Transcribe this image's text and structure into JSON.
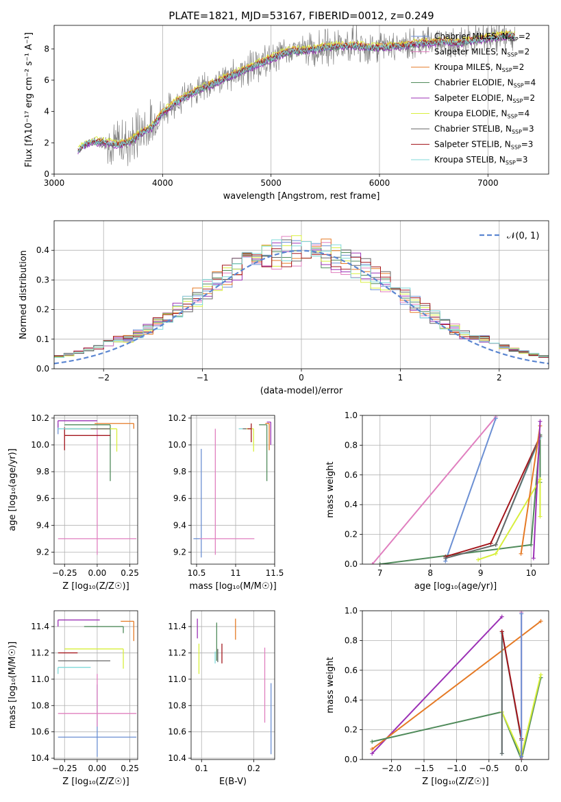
{
  "chart_data": [
    {
      "id": "spectrum",
      "type": "line",
      "title": "PLATE=1821, MJD=53167, FIBERID=0012, z=0.249",
      "xlabel": "wavelength [Angstrom, rest frame]",
      "ylabel": "Flux [fλ10⁻¹⁷ erg cm⁻² s⁻¹ A⁻¹]",
      "xlim": [
        3000,
        7560
      ],
      "ylim": [
        0,
        9.5
      ],
      "xticks": [
        3000,
        4000,
        5000,
        6000,
        7000
      ],
      "yticks": [
        0,
        2,
        4,
        6,
        8
      ],
      "grid": "x",
      "legend_position": "top-right",
      "data_curve": {
        "name": "data",
        "color": "#808080",
        "x": [
          3220,
          3300,
          3400,
          3500,
          3600,
          3700,
          3800,
          3900,
          4000,
          4100,
          4200,
          4300,
          4400,
          4500,
          4600,
          4700,
          4800,
          4900,
          5000,
          5100,
          5200,
          5300,
          5400,
          5500,
          5600,
          5700,
          5800,
          5900,
          6000,
          6100,
          6200,
          6300,
          6400,
          6500,
          6600,
          6700,
          6800,
          6900,
          7000,
          7100,
          7200,
          7250
        ],
        "y": [
          1.5,
          2.0,
          2.1,
          2.0,
          1.9,
          2.1,
          2.6,
          3.0,
          3.9,
          4.5,
          4.9,
          5.3,
          5.6,
          5.9,
          6.2,
          6.5,
          6.8,
          7.1,
          7.4,
          7.7,
          7.9,
          7.9,
          8.0,
          8.1,
          8.2,
          8.2,
          8.2,
          8.1,
          8.1,
          8.2,
          8.2,
          8.3,
          8.4,
          8.4,
          8.5,
          8.4,
          8.5,
          8.6,
          8.7,
          8.8,
          8.9,
          8.8
        ],
        "noise": [
          0.2,
          0.3,
          0.3,
          1.4,
          1.6,
          1.8,
          1.9,
          2.0,
          1.0,
          1.0,
          1.0,
          1.0,
          1.0,
          1.0,
          1.0,
          1.2,
          1.2,
          1.2,
          1.0,
          1.0,
          1.0,
          1.0,
          1.2,
          1.2,
          1.4,
          1.4,
          1.4,
          1.2,
          1.0,
          1.0,
          1.0,
          1.2,
          1.2,
          1.0,
          1.0,
          1.0,
          1.0,
          1.0,
          1.0,
          1.0,
          1.0,
          1.0
        ]
      },
      "series": [
        {
          "name": "Chabrier MILES, N",
          "sub": "SSP",
          "suffix": "=2",
          "color": "#6b8fd3",
          "offset": -0.05
        },
        {
          "name": "Salpeter MILES, N",
          "sub": "SSP",
          "suffix": "=2",
          "color": "#e07fbf",
          "offset": 0.05
        },
        {
          "name": "Kroupa MILES, N",
          "sub": "SSP",
          "suffix": "=2",
          "color": "#e57a25",
          "offset": 0.1
        },
        {
          "name": "Chabrier ELODIE, N",
          "sub": "SSP",
          "suffix": "=4",
          "color": "#4f8a5a",
          "offset": -0.1
        },
        {
          "name": "Salpeter ELODIE, N",
          "sub": "SSP",
          "suffix": "=2",
          "color": "#9b30b5",
          "offset": -0.15
        },
        {
          "name": "Kroupa ELODIE, N",
          "sub": "SSP",
          "suffix": "=4",
          "color": "#d8ef3c",
          "offset": 0.15
        },
        {
          "name": "Chabrier STELIB, N",
          "sub": "SSP",
          "suffix": "=3",
          "color": "#666666",
          "offset": 0.0
        },
        {
          "name": "Salpeter STELIB, N",
          "sub": "SSP",
          "suffix": "=3",
          "color": "#a3161c",
          "offset": 0.02
        },
        {
          "name": "Kroupa STELIB, N",
          "sub": "SSP",
          "suffix": "=3",
          "color": "#7fd9d9",
          "offset": -0.02
        }
      ]
    },
    {
      "id": "residuals",
      "type": "line",
      "xlabel": "(data-model)/error",
      "ylabel": "Normed distribution",
      "xlim": [
        -2.5,
        2.5
      ],
      "ylim": [
        0,
        0.5
      ],
      "xticks": [
        -2,
        -1,
        0,
        1,
        2
      ],
      "yticks": [
        0.0,
        0.1,
        0.2,
        0.3,
        0.4
      ],
      "grid": "both",
      "legend_position": "top-right",
      "legend_entry": "𝒩(0, 1)",
      "gaussian_color": "#5b86d1",
      "bin_width": 0.1,
      "hist_centers_example": [
        -2.45,
        -2.0,
        -1.5,
        -1.0,
        -0.5,
        0.0,
        0.5,
        1.0,
        1.5,
        2.0,
        2.45
      ],
      "hist_values_example": [
        0.01,
        0.05,
        0.12,
        0.2,
        0.36,
        0.4,
        0.37,
        0.22,
        0.12,
        0.06,
        0.03
      ]
    },
    {
      "id": "age_vs_Z",
      "type": "scatter",
      "xlabel": "Z [log₁₀(Z/Z☉)]",
      "ylabel": "age  [log₁₀(age/yr)]",
      "xlim": [
        -0.33,
        0.31
      ],
      "ylim": [
        9.11,
        10.22
      ],
      "xticks": [
        -0.25,
        0.0,
        0.25
      ],
      "xticklabels": [
        "−0.25",
        "0.00",
        "0.25"
      ],
      "yticks": [
        9.2,
        9.4,
        9.6,
        9.8,
        10.0,
        10.2
      ],
      "grid": "both",
      "points": [
        {
          "color": "#6b8fd3",
          "x": -0.3,
          "xerr": [
            0.0,
            0.0
          ],
          "y": 10.13,
          "yerr": [
            0.05,
            0.03
          ]
        },
        {
          "color": "#e07fbf",
          "x": 0.0,
          "xerr": [
            0.3,
            0.3
          ],
          "y": 9.3,
          "yerr": [
            0.12,
            0.82
          ]
        },
        {
          "color": "#e57a25",
          "x": 0.28,
          "xerr": [
            0.3,
            0.0
          ],
          "y": 10.16,
          "yerr": [
            0.04,
            0.0
          ]
        },
        {
          "color": "#4f8a5a",
          "x": 0.1,
          "xerr": [
            0.35,
            0.0
          ],
          "y": 10.15,
          "yerr": [
            0.42,
            0.0
          ]
        },
        {
          "color": "#9b30b5",
          "x": -0.3,
          "xerr": [
            0.0,
            0.3
          ],
          "y": 10.18,
          "yerr": [
            0.05,
            0.0
          ]
        },
        {
          "color": "#d8ef3c",
          "x": 0.15,
          "xerr": [
            0.4,
            0.0
          ],
          "y": 10.12,
          "yerr": [
            0.17,
            0.0
          ]
        },
        {
          "color": "#666666",
          "x": -0.25,
          "xerr": [
            0.0,
            0.35
          ],
          "y": 10.12,
          "yerr": [
            0.0,
            0.0
          ]
        },
        {
          "color": "#a3161c",
          "x": -0.25,
          "xerr": [
            0.0,
            0.35
          ],
          "y": 10.07,
          "yerr": [
            0.11,
            0.06
          ]
        },
        {
          "color": "#7fd9d9",
          "x": -0.3,
          "xerr": [
            0.0,
            0.25
          ],
          "y": 10.12,
          "yerr": [
            0.0,
            0.0
          ]
        }
      ]
    },
    {
      "id": "age_vs_mass",
      "type": "scatter",
      "xlabel": "mass [log₁₀(M/M☉)]",
      "xlim": [
        10.43,
        11.5
      ],
      "ylim": [
        9.11,
        10.22
      ],
      "xticks": [
        10.5,
        11.0,
        11.5
      ],
      "yticks": [
        9.2,
        9.4,
        9.6,
        9.8,
        10.0,
        10.2
      ],
      "grid": "both",
      "points": [
        {
          "color": "#6b8fd3",
          "x": 10.56,
          "xerr": [
            0.1,
            0.0
          ],
          "y": 9.3,
          "yerr": [
            0.14,
            0.67
          ]
        },
        {
          "color": "#e07fbf",
          "x": 10.74,
          "xerr": [
            0.2,
            0.5
          ],
          "y": 9.3,
          "yerr": [
            0.12,
            0.82
          ]
        },
        {
          "color": "#e57a25",
          "x": 11.43,
          "xerr": [
            0.05,
            0.0
          ],
          "y": 10.16,
          "yerr": [
            0.2,
            0.0
          ]
        },
        {
          "color": "#4f8a5a",
          "x": 11.4,
          "xerr": [
            0.1,
            0.0
          ],
          "y": 10.15,
          "yerr": [
            0.42,
            0.0
          ]
        },
        {
          "color": "#9b30b5",
          "x": 11.45,
          "xerr": [
            0.05,
            0.0
          ],
          "y": 10.17,
          "yerr": [
            0.17,
            0.0
          ]
        },
        {
          "color": "#d8ef3c",
          "x": 11.23,
          "xerr": [
            0.1,
            0.0
          ],
          "y": 10.12,
          "yerr": [
            0.17,
            0.0
          ]
        },
        {
          "color": "#666666",
          "x": 11.14,
          "xerr": [
            0.05,
            0.0
          ],
          "y": 10.12,
          "yerr": [
            0.0,
            0.0
          ]
        },
        {
          "color": "#a3161c",
          "x": 11.2,
          "xerr": [
            0.05,
            0.0
          ],
          "y": 10.12,
          "yerr": [
            0.1,
            0.04
          ]
        },
        {
          "color": "#7fd9d9",
          "x": 11.09,
          "xerr": [
            0.05,
            0.0
          ],
          "y": 10.12,
          "yerr": [
            0.0,
            0.0
          ]
        }
      ]
    },
    {
      "id": "weight_vs_age",
      "type": "line",
      "xlabel": "age  [log₁₀(age/yr)]",
      "ylabel": "mass weight",
      "xlim": [
        6.65,
        10.35
      ],
      "ylim": [
        0.0,
        1.0
      ],
      "xticks": [
        7,
        8,
        9,
        10
      ],
      "yticks": [
        0.0,
        0.2,
        0.4,
        0.6,
        0.8,
        1.0
      ],
      "grid": "both",
      "lines": [
        {
          "color": "#e07fbf",
          "x": [
            6.85,
            9.3
          ],
          "y": [
            0.0,
            0.99
          ]
        },
        {
          "color": "#6b8fd3",
          "x": [
            8.3,
            9.3
          ],
          "y": [
            0.02,
            0.98
          ]
        },
        {
          "color": "#4f8a5a",
          "x": [
            7.0,
            10.0,
            10.18,
            10.18
          ],
          "y": [
            0.0,
            0.13,
            0.87,
            0.55
          ]
        },
        {
          "color": "#a3161c",
          "x": [
            8.3,
            9.2,
            10.18
          ],
          "y": [
            0.05,
            0.14,
            0.86
          ]
        },
        {
          "color": "#7fd9d9",
          "x": [
            8.3,
            9.3,
            10.18
          ],
          "y": [
            0.04,
            0.13,
            0.85
          ]
        },
        {
          "color": "#666666",
          "x": [
            8.3,
            9.3,
            10.18
          ],
          "y": [
            0.04,
            0.13,
            0.86
          ]
        },
        {
          "color": "#d8ef3c",
          "x": [
            8.95,
            9.3,
            10.18,
            10.18
          ],
          "y": [
            0.03,
            0.07,
            0.57,
            0.32
          ]
        },
        {
          "color": "#e57a25",
          "x": [
            9.8,
            10.18
          ],
          "y": [
            0.07,
            0.93
          ]
        },
        {
          "color": "#9b30b5",
          "x": [
            10.05,
            10.18
          ],
          "y": [
            0.04,
            0.96
          ]
        }
      ]
    },
    {
      "id": "mass_vs_Z",
      "type": "scatter",
      "xlabel": "Z [log₁₀(Z/Z☉)]",
      "ylabel": "mass [log₁₀(M/M☉)]",
      "xlim": [
        -0.33,
        0.31
      ],
      "ylim": [
        10.39,
        11.52
      ],
      "xticks": [
        -0.25,
        0.0,
        0.25
      ],
      "xticklabels": [
        "−0.25",
        "0.00",
        "0.25"
      ],
      "yticks": [
        10.4,
        10.6,
        10.8,
        11.0,
        11.2,
        11.4
      ],
      "grid": "both",
      "points": [
        {
          "color": "#6b8fd3",
          "x": 0.0,
          "xerr": [
            0.3,
            0.3
          ],
          "y": 10.56,
          "yerr": [
            0.15,
            0.4
          ]
        },
        {
          "color": "#e07fbf",
          "x": 0.0,
          "xerr": [
            0.3,
            0.3
          ],
          "y": 10.74,
          "yerr": [
            0.1,
            0.3
          ]
        },
        {
          "color": "#e57a25",
          "x": 0.28,
          "xerr": [
            0.1,
            0.0
          ],
          "y": 11.44,
          "yerr": [
            0.15,
            0.0
          ]
        },
        {
          "color": "#4f8a5a",
          "x": 0.2,
          "xerr": [
            0.3,
            0.0
          ],
          "y": 11.4,
          "yerr": [
            0.05,
            0.0
          ]
        },
        {
          "color": "#9b30b5",
          "x": -0.3,
          "xerr": [
            0.0,
            0.32
          ],
          "y": 11.45,
          "yerr": [
            0.05,
            0.0
          ]
        },
        {
          "color": "#d8ef3c",
          "x": 0.2,
          "xerr": [
            0.45,
            0.0
          ],
          "y": 11.23,
          "yerr": [
            0.15,
            0.0
          ]
        },
        {
          "color": "#666666",
          "x": -0.3,
          "xerr": [
            0.0,
            0.4
          ],
          "y": 11.14,
          "yerr": [
            0.0,
            0.0
          ]
        },
        {
          "color": "#a3161c",
          "x": -0.25,
          "xerr": [
            0.05,
            0.1
          ],
          "y": 11.2,
          "yerr": [
            0.0,
            0.0
          ]
        },
        {
          "color": "#7fd9d9",
          "x": -0.3,
          "xerr": [
            0.0,
            0.25
          ],
          "y": 11.09,
          "yerr": [
            0.05,
            0.0
          ]
        }
      ]
    },
    {
      "id": "mass_vs_EBV",
      "type": "scatter",
      "xlabel": "E(B-V)",
      "xlim": [
        0.08,
        0.24
      ],
      "ylim": [
        10.39,
        11.52
      ],
      "xticks": [
        0.1,
        0.2
      ],
      "yticks": [
        10.4,
        10.6,
        10.8,
        11.0,
        11.2,
        11.4
      ],
      "grid": "both",
      "points": [
        {
          "color": "#6b8fd3",
          "x": 0.233,
          "yerr": [
            10.43,
            10.97
          ]
        },
        {
          "color": "#e07fbf",
          "x": 0.221,
          "yerr": [
            10.67,
            11.24
          ]
        },
        {
          "color": "#e57a25",
          "x": 0.165,
          "yerr": [
            11.3,
            11.46
          ]
        },
        {
          "color": "#4f8a5a",
          "x": 0.129,
          "yerr": [
            11.14,
            11.43
          ]
        },
        {
          "color": "#9b30b5",
          "x": 0.092,
          "yerr": [
            11.31,
            11.46
          ]
        },
        {
          "color": "#d8ef3c",
          "x": 0.095,
          "yerr": [
            11.04,
            11.27
          ]
        },
        {
          "color": "#666666",
          "x": 0.131,
          "yerr": [
            11.13,
            11.23
          ]
        },
        {
          "color": "#a3161c",
          "x": 0.139,
          "yerr": [
            11.12,
            11.27
          ]
        },
        {
          "color": "#7fd9d9",
          "x": 0.126,
          "yerr": [
            11.12,
            11.21
          ]
        }
      ]
    },
    {
      "id": "weight_vs_Z",
      "type": "line",
      "xlabel": "Z [log₁₀(Z/Z☉)]",
      "ylabel": "mass weight",
      "xlim": [
        -2.45,
        0.42
      ],
      "ylim": [
        0.0,
        1.0
      ],
      "xticks": [
        -2.0,
        -1.5,
        -1.0,
        -0.5,
        0.0
      ],
      "xticklabels": [
        "−2.0",
        "−1.5",
        "−1.0",
        "−0.5",
        "0.0"
      ],
      "yticks": [
        0.0,
        0.2,
        0.4,
        0.6,
        0.8,
        1.0
      ],
      "grid": "both",
      "lines": [
        {
          "color": "#9b30b5",
          "x": [
            -2.3,
            -0.3
          ],
          "y": [
            0.04,
            0.96
          ]
        },
        {
          "color": "#e57a25",
          "x": [
            -2.3,
            0.3
          ],
          "y": [
            0.07,
            0.93
          ]
        },
        {
          "color": "#4f8a5a",
          "x": [
            -2.3,
            -0.3,
            0.0,
            0.3
          ],
          "y": [
            0.12,
            0.32,
            0.0,
            0.55
          ]
        },
        {
          "color": "#d8ef3c",
          "x": [
            -0.3,
            0.0,
            0.3
          ],
          "y": [
            0.32,
            0.03,
            0.57
          ]
        },
        {
          "color": "#7fd9d9",
          "x": [
            -0.3,
            -0.3,
            0.0
          ],
          "y": [
            0.04,
            0.85,
            0.13
          ]
        },
        {
          "color": "#666666",
          "x": [
            -0.3,
            -0.3,
            0.0
          ],
          "y": [
            0.04,
            0.86,
            0.13
          ]
        },
        {
          "color": "#a3161c",
          "x": [
            -0.3,
            0.0,
            0.0
          ],
          "y": [
            0.86,
            0.14,
            0.0
          ]
        },
        {
          "color": "#e07fbf",
          "x": [
            0.0,
            0.0
          ],
          "y": [
            0.0,
            0.99
          ]
        },
        {
          "color": "#6b8fd3",
          "x": [
            0.0,
            0.0
          ],
          "y": [
            0.02,
            0.98
          ]
        }
      ]
    }
  ]
}
